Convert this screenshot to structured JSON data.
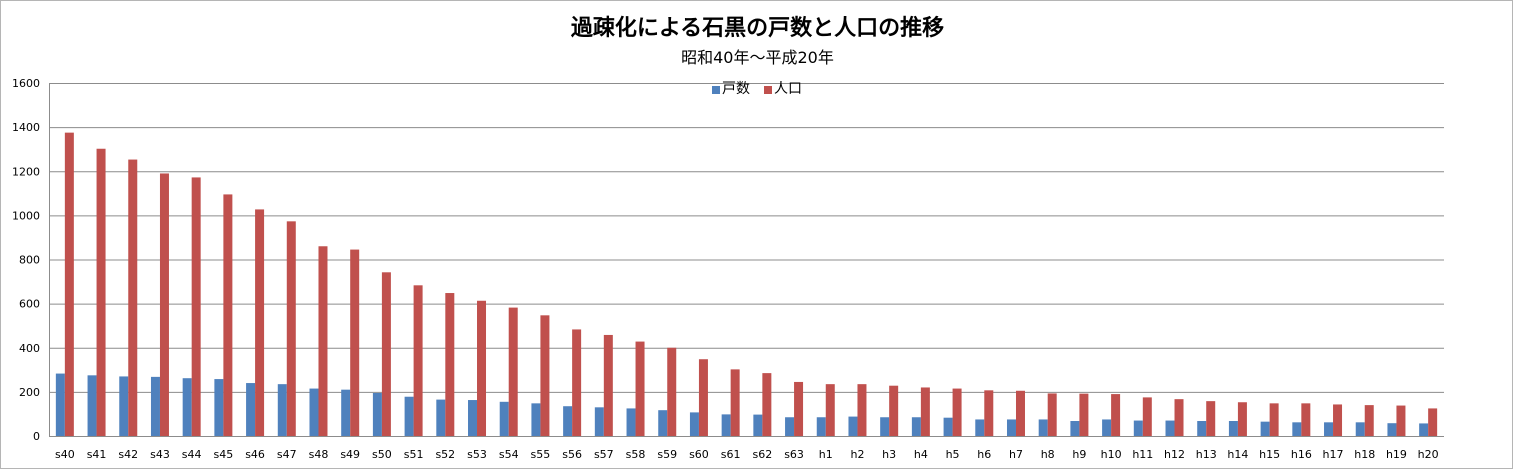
{
  "chart_data": {
    "type": "bar",
    "title": "過疎化による石黒の戸数と人口の推移",
    "subtitle": "昭和40年〜平成20年",
    "xlabel": "",
    "ylabel": "",
    "ylim": [
      0,
      1600
    ],
    "yticks": [
      0,
      200,
      400,
      600,
      800,
      1000,
      1200,
      1400,
      1600
    ],
    "grid": true,
    "legend_position": "top-center",
    "categories": [
      "s40",
      "s41",
      "s42",
      "s43",
      "s44",
      "s45",
      "s46",
      "s47",
      "s48",
      "s49",
      "s50",
      "s51",
      "s52",
      "s53",
      "s54",
      "s55",
      "s56",
      "s57",
      "s58",
      "s59",
      "s60",
      "s61",
      "s62",
      "s63",
      "h1",
      "h2",
      "h3",
      "h4",
      "h5",
      "h6",
      "h7",
      "h8",
      "h9",
      "h10",
      "h11",
      "h12",
      "h13",
      "h14",
      "h15",
      "h16",
      "h17",
      "h18",
      "h19",
      "h20"
    ],
    "series": [
      {
        "name": "戸数",
        "color": "#4f81bd",
        "values": [
          283,
          275,
          270,
          268,
          262,
          258,
          240,
          235,
          215,
          210,
          195,
          178,
          165,
          163,
          155,
          148,
          135,
          130,
          125,
          117,
          107,
          98,
          97,
          85,
          85,
          88,
          85,
          85,
          83,
          75,
          75,
          75,
          68,
          75,
          70,
          70,
          68,
          68,
          65,
          62,
          62,
          62,
          58,
          57
        ]
      },
      {
        "name": "人口",
        "color": "#c0504d",
        "values": [
          1375,
          1302,
          1253,
          1190,
          1172,
          1095,
          1027,
          973,
          860,
          845,
          742,
          683,
          648,
          613,
          582,
          547,
          483,
          458,
          428,
          400,
          348,
          302,
          285,
          245,
          235,
          235,
          228,
          220,
          215,
          207,
          205,
          193,
          192,
          190,
          175,
          167,
          158,
          153,
          148,
          148,
          143,
          140,
          138,
          125
        ]
      }
    ]
  }
}
